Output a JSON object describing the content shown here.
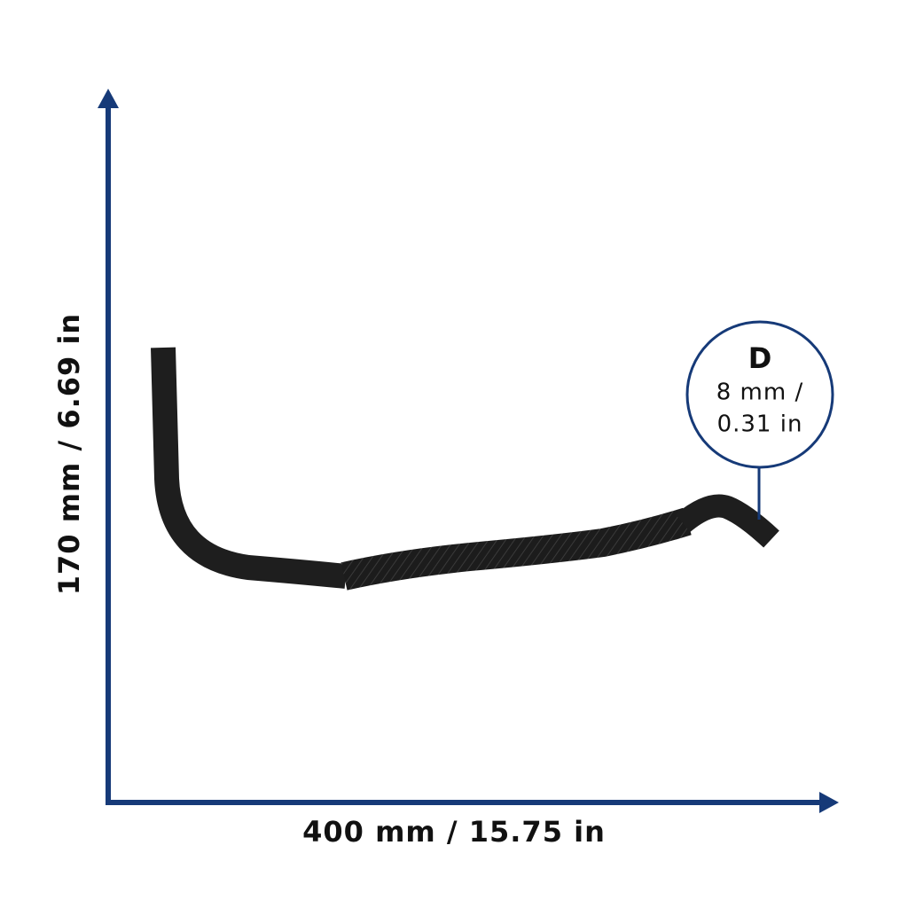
{
  "dimensions": {
    "height": "170 mm / 6.69 in",
    "width": "400 mm / 15.75 in"
  },
  "diameter": {
    "letter": "D",
    "lines": [
      "8 mm /",
      "0.31 in"
    ]
  }
}
